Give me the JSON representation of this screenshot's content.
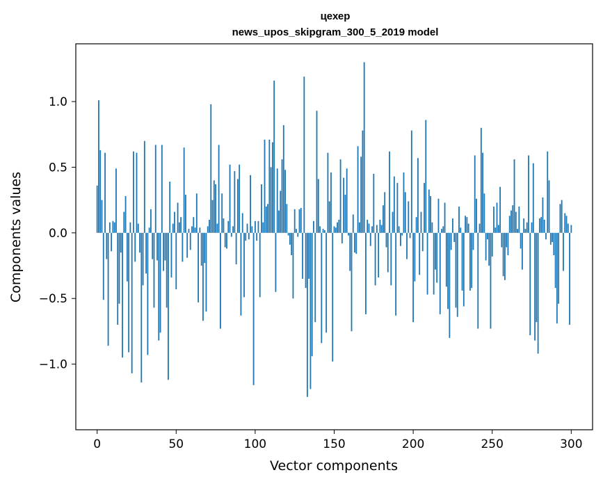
{
  "chart_data": {
    "type": "bar",
    "title_line1": "цехер",
    "title_line2": "news_upos_skipgram_300_5_2019 model",
    "xlabel": "Vector components",
    "ylabel": "Components values",
    "xlim": [
      -13.5,
      313.5
    ],
    "ylim": [
      -1.5,
      1.44
    ],
    "x_ticks": [
      0,
      50,
      100,
      150,
      200,
      250,
      300
    ],
    "x_tick_labels": [
      "0",
      "50",
      "100",
      "150",
      "200",
      "250",
      "300"
    ],
    "y_ticks": [
      -1.0,
      -0.5,
      0.0,
      0.5,
      1.0
    ],
    "y_tick_labels": [
      "−1.0",
      "−0.5",
      "0.0",
      "0.5",
      "1.0"
    ],
    "bar_color": "#1f77b4",
    "values": [
      0.36,
      1.01,
      0.63,
      0.25,
      -0.51,
      0.61,
      -0.2,
      -0.86,
      0.08,
      -0.14,
      0.09,
      0.08,
      0.49,
      -0.7,
      -0.54,
      -0.15,
      -0.95,
      0.16,
      0.28,
      -0.37,
      -0.91,
      0.08,
      -1.07,
      0.62,
      -0.22,
      0.61,
      0.07,
      -0.15,
      -1.14,
      -0.4,
      0.7,
      -0.31,
      -0.93,
      0.04,
      0.18,
      -0.2,
      -0.57,
      0.67,
      -0.21,
      -0.82,
      -0.76,
      0.67,
      -0.29,
      -0.21,
      -0.57,
      -1.12,
      0.39,
      -0.34,
      0.07,
      0.16,
      -0.43,
      0.23,
      0.08,
      0.12,
      -0.22,
      0.65,
      0.29,
      -0.19,
      0.03,
      -0.13,
      0.05,
      0.12,
      0.04,
      0.3,
      -0.53,
      0.04,
      -0.25,
      -0.67,
      -0.23,
      -0.6,
      0.05,
      0.1,
      0.98,
      0.25,
      0.4,
      0.37,
      0.07,
      0.67,
      -0.73,
      0.3,
      0.11,
      -0.11,
      -0.12,
      0.09,
      0.52,
      -0.03,
      0.05,
      0.47,
      -0.24,
      0.41,
      0.52,
      -0.63,
      0.15,
      -0.49,
      -0.06,
      0.07,
      -0.05,
      0.44,
      0.05,
      -1.16,
      0.09,
      -0.06,
      0.09,
      -0.49,
      0.37,
      0.08,
      0.71,
      0.2,
      0.22,
      0.71,
      0.5,
      0.69,
      1.16,
      -0.45,
      0.49,
      0.17,
      0.32,
      0.56,
      0.82,
      0.48,
      0.22,
      -0.02,
      -0.09,
      -0.17,
      -0.5,
      0.18,
      0.03,
      -0.03,
      0.18,
      0.19,
      -0.35,
      1.19,
      -0.42,
      -1.25,
      -0.35,
      -1.19,
      -0.94,
      0.09,
      -0.68,
      0.93,
      0.41,
      0.05,
      -0.84,
      0.03,
      0.02,
      -0.76,
      0.61,
      0.24,
      0.46,
      -0.98,
      0.05,
      0.04,
      0.08,
      0.1,
      0.56,
      -0.08,
      0.42,
      0.29,
      0.49,
      -0.02,
      -0.29,
      -0.75,
      0.14,
      -0.15,
      -0.16,
      0.66,
      0.08,
      0.58,
      0.78,
      1.3,
      -0.62,
      0.1,
      0.07,
      -0.1,
      0.05,
      0.45,
      -0.4,
      0.06,
      -0.34,
      0.1,
      0.06,
      0.21,
      0.31,
      -0.11,
      -0.3,
      0.62,
      -0.4,
      0.16,
      0.43,
      -0.63,
      0.38,
      0.05,
      -0.1,
      -0.02,
      0.46,
      0.31,
      -0.2,
      0.24,
      -0.04,
      0.78,
      -0.68,
      -0.37,
      0.12,
      0.57,
      -0.32,
      0.16,
      -0.14,
      0.38,
      0.86,
      -0.47,
      0.33,
      0.28,
      0.08,
      -0.47,
      -0.28,
      -0.38,
      0.26,
      -0.62,
      0.03,
      0.05,
      0.23,
      -0.41,
      -0.58,
      -0.8,
      -0.13,
      0.11,
      -0.07,
      -0.57,
      -0.64,
      0.2,
      0.04,
      -0.44,
      -0.56,
      0.13,
      0.12,
      0.07,
      -0.44,
      -0.42,
      -0.13,
      0.59,
      0.26,
      -0.73,
      0.07,
      0.8,
      0.61,
      0.3,
      -0.21,
      -0.05,
      -0.25,
      -0.73,
      -0.18,
      0.2,
      0.04,
      0.23,
      0.06,
      0.35,
      -0.11,
      -0.33,
      -0.36,
      -0.11,
      -0.17,
      0.13,
      0.17,
      0.21,
      0.56,
      0.16,
      0.03,
      0.2,
      -0.12,
      -0.28,
      0.11,
      0.03,
      0.08,
      0.59,
      -0.78,
      0.08,
      0.53,
      -0.82,
      -0.68,
      -0.92,
      0.11,
      0.12,
      0.27,
      0.1,
      -0.05,
      0.62,
      0.4,
      -0.09,
      -0.07,
      -0.17,
      -0.42,
      -0.69,
      -0.54,
      0.22,
      0.25,
      -0.29,
      0.15,
      0.13,
      0.07,
      -0.7,
      0.06
    ]
  }
}
